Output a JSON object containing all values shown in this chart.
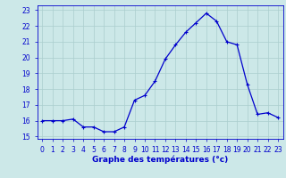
{
  "hours": [
    0,
    1,
    2,
    3,
    4,
    5,
    6,
    7,
    8,
    9,
    10,
    11,
    12,
    13,
    14,
    15,
    16,
    17,
    18,
    19,
    20,
    21,
    22,
    23
  ],
  "temps": [
    16.0,
    16.0,
    16.0,
    16.1,
    15.6,
    15.6,
    15.3,
    15.3,
    15.6,
    17.3,
    17.6,
    18.5,
    19.9,
    20.8,
    21.6,
    22.2,
    22.8,
    22.3,
    21.0,
    20.8,
    18.3,
    16.4,
    16.5,
    16.2
  ],
  "line_color": "#0000cc",
  "marker": "+",
  "marker_size": 3,
  "marker_linewidth": 0.8,
  "bg_color": "#cce8e8",
  "grid_color": "#aacece",
  "title": "Graphe des températures (°c)",
  "xlim": [
    -0.5,
    23.5
  ],
  "ylim": [
    14.85,
    23.3
  ],
  "yticks": [
    15,
    16,
    17,
    18,
    19,
    20,
    21,
    22,
    23
  ],
  "xticks": [
    0,
    1,
    2,
    3,
    4,
    5,
    6,
    7,
    8,
    9,
    10,
    11,
    12,
    13,
    14,
    15,
    16,
    17,
    18,
    19,
    20,
    21,
    22,
    23
  ],
  "tick_fontsize": 5.5,
  "xlabel_fontsize": 6.5,
  "label_color": "#0000cc",
  "linewidth": 0.9
}
